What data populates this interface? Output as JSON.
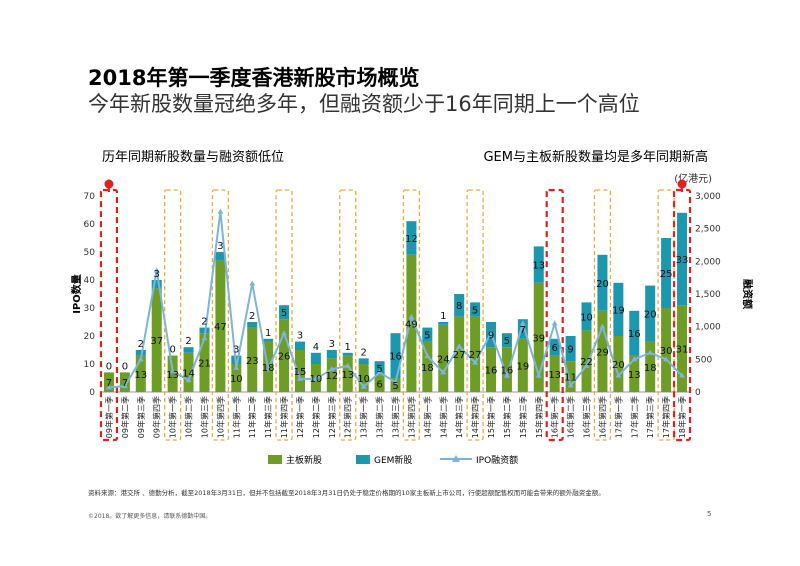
{
  "header": {
    "title": "2018年第一季度香港新股市场概览",
    "subtitle": "今年新股数量冠绝多年，但融资额少于16年同期上一个高位"
  },
  "annotations": {
    "left": "历年同期新股数量与融资额低位",
    "right": "GEM与主板新股数量均是多年同期新高",
    "unit": "(亿港元)"
  },
  "legend": {
    "main_board": "主板新股",
    "gem": "GEM新股",
    "ipo": "IPO融资额"
  },
  "footnote": "资料来源：港交所 、德勤分析，截至2018年3月31日，但并不包括截至2018年3月31日仍处于稳定价格期的10家主板新上市公司，行使超额配售权而可能会带来的额外融资金额。",
  "copyright": "©2018。欲了解更多信息，请联系德勤中国。",
  "page_number": "5",
  "colors": {
    "main_board": "#6E9D25",
    "gem": "#1B97AE",
    "ipo": "#7DB5DA",
    "red": "#E2221A",
    "orange": "#F0A93B"
  },
  "chart_data": {
    "type": "bar",
    "stacked": true,
    "categories": [
      "09年第一季",
      "09年第二季",
      "09年第三季",
      "09年第四季",
      "10年第一季",
      "10年第二季",
      "10年第三季",
      "10年第四季",
      "11年第一季",
      "11年第二季",
      "11年第三季",
      "11年第四季",
      "12年第一季",
      "12年第二季",
      "12年第三季",
      "12年第四季",
      "13年第一季",
      "13年第二季",
      "13年第三季",
      "13年第四季",
      "14年第一季",
      "14年第二季",
      "14年第三季",
      "14年第四季",
      "15年第一季",
      "15年第二季",
      "15年第三季",
      "15年第四季",
      "16年第一季",
      "16年第二季",
      "16年第三季",
      "16年第四季",
      "17年第一季",
      "17年第二季",
      "17年第三季",
      "17年第四季",
      "18年第一季"
    ],
    "series": [
      {
        "name": "主板新股",
        "values": [
          7,
          7,
          13,
          37,
          13,
          14,
          21,
          47,
          10,
          23,
          18,
          26,
          15,
          10,
          12,
          13,
          10,
          6,
          5,
          49,
          18,
          24,
          27,
          27,
          16,
          16,
          19,
          39,
          13,
          11,
          22,
          29,
          20,
          13,
          18,
          30,
          31
        ]
      },
      {
        "name": "GEM新股",
        "values": [
          0,
          0,
          2,
          3,
          0,
          2,
          2,
          3,
          3,
          2,
          1,
          5,
          3,
          4,
          3,
          1,
          2,
          5,
          16,
          12,
          5,
          1,
          8,
          5,
          9,
          5,
          7,
          13,
          6,
          9,
          10,
          20,
          19,
          16,
          20,
          25,
          33
        ]
      },
      {
        "name": "IPO融资额",
        "values": [
          70,
          90,
          500,
          1860,
          320,
          180,
          820,
          2760,
          370,
          1660,
          350,
          900,
          200,
          200,
          350,
          400,
          80,
          300,
          150,
          1150,
          550,
          300,
          700,
          450,
          900,
          250,
          1050,
          250,
          1050,
          100,
          400,
          1000,
          250,
          500,
          600,
          500,
          250
        ]
      }
    ],
    "y_left": {
      "label": "IPO数量",
      "range": [
        0,
        70
      ],
      "ticks": [
        0,
        10,
        20,
        30,
        40,
        50,
        60,
        70
      ]
    },
    "y_right": {
      "label": "融资额",
      "range": [
        0,
        3000
      ],
      "ticks": [
        "0",
        "500",
        "1,000",
        "1,500",
        "2,000",
        "2,500",
        "3,000"
      ]
    },
    "highlight_red": [
      0,
      28,
      36
    ],
    "highlight_orange": [
      4,
      7,
      11,
      15,
      19,
      23,
      31,
      35
    ]
  }
}
